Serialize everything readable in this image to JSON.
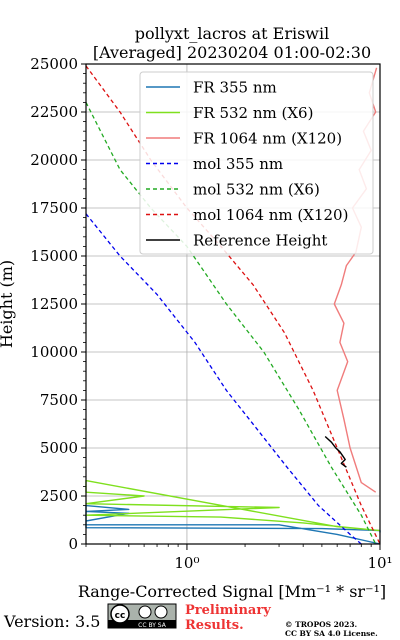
{
  "chart_data": {
    "type": "line",
    "title_lines": [
      "pollyxt_lacros at Eriswil",
      "[Averaged] 20230204 01:00-02:30"
    ],
    "xlabel": "Range-Corrected Signal [Mm⁻¹ * sr⁻¹]",
    "ylabel": "Height (m)",
    "xscale": "log",
    "xlim": [
      0.3,
      10
    ],
    "ylim": [
      0,
      25000
    ],
    "x_ticks": [
      {
        "value": 1,
        "label": "10⁰"
      },
      {
        "value": 10,
        "label": "10¹"
      }
    ],
    "y_ticks": [
      0,
      2500,
      5000,
      7500,
      10000,
      12500,
      15000,
      17500,
      20000,
      22500,
      25000
    ],
    "y_tick_labels": [
      "0",
      "2500",
      "5000",
      "7500",
      "10000",
      "12500",
      "15000",
      "17500",
      "20000",
      "22500",
      "25000"
    ],
    "grid": true,
    "legend_position": "top-right",
    "series": [
      {
        "name": "FR 355 nm",
        "color": "#1f77b4",
        "style": "solid",
        "x": [
          10,
          6,
          3,
          0.3,
          0.3,
          0.5,
          0.3,
          0.5,
          0.3,
          0.3,
          5,
          10,
          10
        ],
        "y": [
          0,
          500,
          1000,
          1000,
          1200,
          1600,
          1700,
          1800,
          2000,
          850,
          800,
          700,
          600
        ]
      },
      {
        "name": "FR 532 nm (X6)",
        "color": "#7fe01e",
        "style": "solid",
        "x": [
          10,
          7,
          4,
          1.5,
          0.3,
          3,
          0.3,
          0.6,
          0.3,
          0.3,
          6,
          10
        ],
        "y": [
          700,
          850,
          1100,
          1400,
          1500,
          1900,
          2100,
          2500,
          2700,
          3300,
          900,
          700
        ]
      },
      {
        "name": "FR 1064 nm (X120)",
        "color": "#f07c7c",
        "style": "solid",
        "x": [
          9.5,
          8,
          7,
          6.5,
          6,
          6.8,
          6.2,
          6.5,
          5.8,
          6.3,
          6.7,
          7.5,
          8,
          7.2,
          8.5,
          7.8,
          9,
          8.2,
          9.5,
          8.8,
          9.6
        ],
        "y": [
          2700,
          3200,
          5000,
          6500,
          8000,
          9500,
          10500,
          11500,
          12500,
          13500,
          14500,
          15200,
          16500,
          17500,
          18500,
          19500,
          20500,
          21500,
          22500,
          23500,
          24800
        ]
      },
      {
        "name": "mol 355 nm",
        "color": "#0000ee",
        "style": "dashed",
        "x": [
          0.3,
          0.45,
          0.7,
          1.1,
          1.6,
          2.3,
          3.3,
          4.8,
          7,
          8
        ],
        "y": [
          17200,
          15000,
          13000,
          10500,
          8000,
          6000,
          4000,
          2000,
          500,
          0
        ]
      },
      {
        "name": "mol 532 nm (X6)",
        "color": "#22aa22",
        "style": "dashed",
        "x": [
          0.3,
          0.45,
          0.65,
          1.0,
          1.6,
          2.5,
          3.8,
          5.6,
          8,
          9.5
        ],
        "y": [
          23000,
          19500,
          17500,
          15500,
          12500,
          10000,
          7000,
          4000,
          1500,
          0
        ]
      },
      {
        "name": "mol 1064 nm (X120)",
        "color": "#dd1111",
        "style": "dashed",
        "x": [
          0.3,
          0.45,
          0.65,
          1.0,
          1.5,
          2.2,
          3.2,
          4.5,
          6,
          8,
          10
        ],
        "y": [
          24900,
          22500,
          20000,
          17500,
          15500,
          13500,
          11000,
          8000,
          5000,
          2000,
          0
        ]
      },
      {
        "name": "Reference Height",
        "color": "#000000",
        "style": "solid",
        "x": [
          5.2,
          5.6,
          5.9,
          6.2,
          6.4,
          6.6,
          6.3,
          6.7
        ],
        "y": [
          5600,
          5300,
          5000,
          4800,
          4600,
          4400,
          4200,
          4000
        ]
      }
    ]
  },
  "footer": {
    "version": "Version: 3.5",
    "cc_badge": "CC BY SA",
    "preliminary_line1": "Preliminary",
    "preliminary_line2": "Results.",
    "copyright_line1": "© TROPOS 2023.",
    "copyright_line2": "CC BY SA 4.0 License."
  }
}
